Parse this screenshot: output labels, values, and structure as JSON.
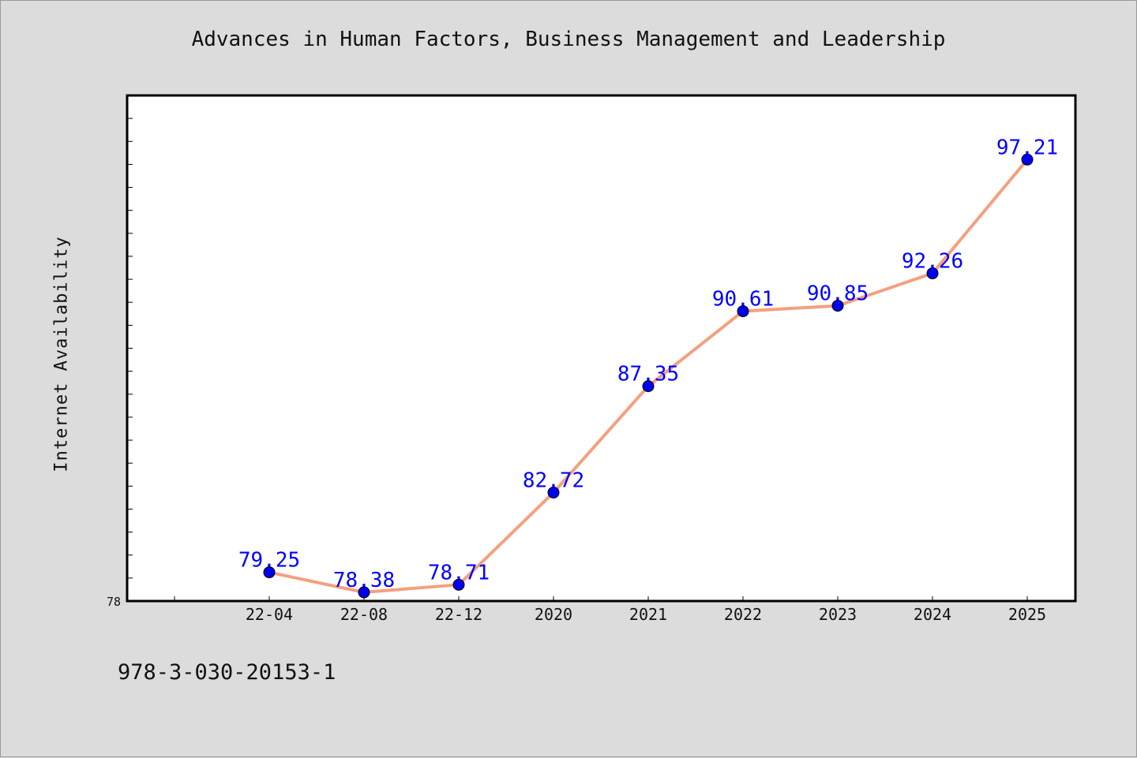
{
  "chart_data": {
    "type": "line",
    "title": "Advances in Human Factors, Business Management and Leadership",
    "xlabel": "",
    "ylabel": "Internet Availability",
    "categories": [
      "22-04",
      "22-08",
      "22-12",
      "2020",
      "2021",
      "2022",
      "2023",
      "2024",
      "2025"
    ],
    "series": [
      {
        "values": [
          79.25,
          78.38,
          78.71,
          82.72,
          87.35,
          90.61,
          90.85,
          92.26,
          97.21
        ]
      }
    ],
    "data_labels": [
      "79.25",
      "78.38",
      "78.71",
      "82.72",
      "87.35",
      "90.61",
      "90.85",
      "92.26",
      "97.21"
    ],
    "ylim": [
      78,
      100
    ],
    "yticks_labeled": [
      "78"
    ],
    "grid": false,
    "legend": "none",
    "colors": {
      "line": "#f4a07f",
      "marker": "#0000ee",
      "data_label": "#0000ff",
      "plot_bg": "#ffffff",
      "figure_bg": "#dcdcdc"
    }
  },
  "footer": {
    "id_text": "978-3-030-20153-1"
  }
}
